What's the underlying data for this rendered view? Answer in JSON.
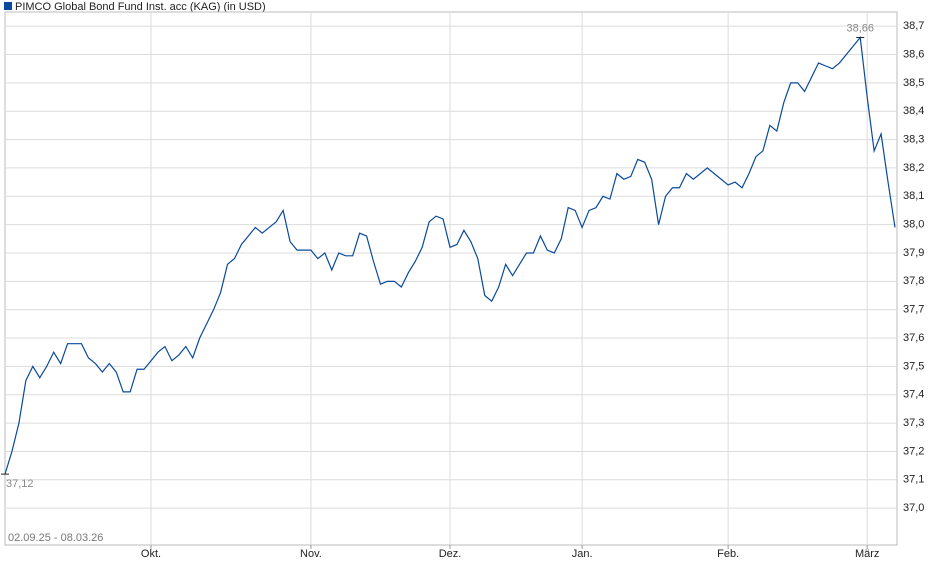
{
  "chart_data": {
    "type": "line",
    "title": "PIMCO Global Bond Fund Inst. acc (KAG) (in USD)",
    "subtitle": "02.09.25 - 08.03.26",
    "categories": [
      null,
      null,
      null,
      null,
      null,
      null,
      null,
      null,
      null,
      null,
      null,
      null,
      null,
      null,
      null,
      null,
      null,
      null,
      null,
      null,
      null,
      "Okt.",
      null,
      null,
      null,
      null,
      null,
      null,
      null,
      null,
      null,
      null,
      null,
      null,
      null,
      null,
      null,
      null,
      null,
      null,
      null,
      null,
      null,
      null,
      "Nov.",
      null,
      null,
      null,
      null,
      null,
      null,
      null,
      null,
      null,
      null,
      null,
      null,
      null,
      null,
      null,
      null,
      null,
      null,
      null,
      "Dez.",
      null,
      null,
      null,
      null,
      null,
      null,
      null,
      null,
      null,
      null,
      null,
      null,
      null,
      null,
      null,
      null,
      null,
      null,
      "Jan.",
      null,
      null,
      null,
      null,
      null,
      null,
      null,
      null,
      null,
      null,
      null,
      null,
      null,
      null,
      null,
      null,
      null,
      null,
      null,
      null,
      "Feb.",
      null,
      null,
      null,
      null,
      null,
      null,
      null,
      null,
      null,
      null,
      null,
      null,
      null,
      null,
      null,
      null,
      null,
      null,
      null,
      "März",
      null,
      null,
      null,
      null
    ],
    "series": [
      {
        "name": "PIMCO Global Bond Fund Inst. acc (KAG) (in USD)",
        "color": "#0a4a9c",
        "values": [
          37.12,
          37.2,
          37.3,
          37.45,
          37.5,
          37.46,
          37.5,
          37.55,
          37.51,
          37.58,
          37.58,
          37.58,
          37.53,
          37.51,
          37.48,
          37.51,
          37.48,
          37.41,
          37.41,
          37.49,
          37.49,
          37.52,
          37.55,
          37.57,
          37.52,
          37.54,
          37.57,
          37.53,
          37.6,
          37.65,
          37.7,
          37.76,
          37.86,
          37.88,
          37.93,
          37.96,
          37.99,
          37.97,
          37.99,
          38.01,
          38.05,
          37.94,
          37.91,
          37.91,
          37.91,
          37.88,
          37.9,
          37.84,
          37.9,
          37.89,
          37.89,
          37.97,
          37.96,
          37.87,
          37.79,
          37.8,
          37.8,
          37.78,
          37.83,
          37.87,
          37.92,
          38.01,
          38.03,
          38.02,
          37.92,
          37.93,
          37.98,
          37.94,
          37.88,
          37.75,
          37.73,
          37.78,
          37.86,
          37.82,
          37.86,
          37.9,
          37.9,
          37.96,
          37.91,
          37.9,
          37.95,
          38.06,
          38.05,
          37.99,
          38.05,
          38.06,
          38.1,
          38.09,
          38.18,
          38.16,
          38.17,
          38.23,
          38.22,
          38.16,
          38.0,
          38.1,
          38.13,
          38.13,
          38.18,
          38.16,
          38.18,
          38.2,
          38.18,
          38.16,
          38.14,
          38.15,
          38.13,
          38.18,
          38.24,
          38.26,
          38.35,
          38.33,
          38.43,
          38.5,
          38.5,
          38.47,
          38.52,
          38.57,
          38.56,
          38.55,
          38.57,
          38.6,
          38.63,
          38.66,
          38.45,
          38.26,
          38.32,
          38.15,
          37.99
        ],
        "value_labels": [
          "37,12",
          null,
          null,
          null,
          null,
          null,
          null,
          null,
          null,
          null,
          null,
          null,
          null,
          null,
          null,
          null,
          null,
          null,
          null,
          null,
          null,
          null,
          null,
          null,
          null,
          null,
          null,
          null,
          null,
          null,
          null,
          null,
          null,
          null,
          null,
          null,
          null,
          null,
          null,
          null,
          null,
          null,
          null,
          null,
          null,
          null,
          null,
          null,
          null,
          null,
          null,
          null,
          null,
          null,
          null,
          null,
          null,
          null,
          null,
          null,
          null,
          null,
          null,
          null,
          null,
          null,
          null,
          null,
          null,
          null,
          null,
          null,
          null,
          null,
          null,
          null,
          null,
          null,
          null,
          null,
          null,
          null,
          null,
          null,
          null,
          null,
          null,
          null,
          null,
          null,
          null,
          null,
          null,
          null,
          null,
          null,
          null,
          null,
          null,
          null,
          null,
          null,
          null,
          null,
          null,
          null,
          null,
          null,
          null,
          null,
          null,
          null,
          null,
          null,
          null,
          null,
          null,
          null,
          null,
          null,
          null,
          null,
          null,
          "38,66",
          null,
          null,
          null,
          null,
          null
        ]
      }
    ],
    "ylim": [
      36.87,
      38.75
    ],
    "yticks": [
      {
        "value": 37.0,
        "label": "37,0"
      },
      {
        "value": 37.1,
        "label": "37,1"
      },
      {
        "value": 37.2,
        "label": "37,2"
      },
      {
        "value": 37.3,
        "label": "37,3"
      },
      {
        "value": 37.4,
        "label": "37,4"
      },
      {
        "value": 37.5,
        "label": "37,5"
      },
      {
        "value": 37.6,
        "label": "37,6"
      },
      {
        "value": 37.7,
        "label": "37,7"
      },
      {
        "value": 37.8,
        "label": "37,8"
      },
      {
        "value": 37.9,
        "label": "37,9"
      },
      {
        "value": 38.0,
        "label": "38,0"
      },
      {
        "value": 38.1,
        "label": "38,1"
      },
      {
        "value": 38.2,
        "label": "38,2"
      },
      {
        "value": 38.3,
        "label": "38,3"
      },
      {
        "value": 38.4,
        "label": "38,4"
      },
      {
        "value": 38.5,
        "label": "38,5"
      },
      {
        "value": 38.6,
        "label": "38,6"
      },
      {
        "value": 38.7,
        "label": "38,7"
      }
    ],
    "grid": true
  }
}
